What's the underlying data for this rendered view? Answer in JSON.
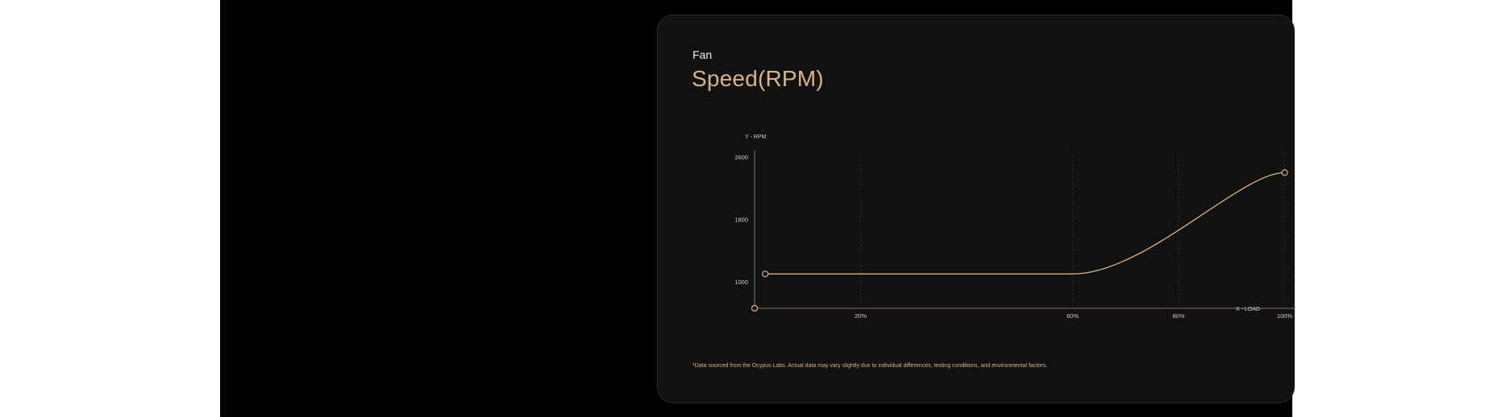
{
  "header": {
    "eyebrow": "Fan",
    "title": "Speed(RPM)"
  },
  "footnote": "*Data sourced from the Ocypus Labs. Actual data may vary slightly due to individual differences, testing conditions, and environmental factors.",
  "colors": {
    "accent": "#d8b48a",
    "axis": "#8a7560",
    "grid": "#2e2e2e",
    "card": "#111111",
    "stage": "#000000",
    "text": "#cfcfcf"
  },
  "chart_data": {
    "type": "line",
    "xlabel": "X - LOAD",
    "ylabel": "Y - RPM",
    "x_ticks": [
      {
        "value": 20,
        "label": "20%"
      },
      {
        "value": 60,
        "label": "60%"
      },
      {
        "value": 80,
        "label": "80%"
      },
      {
        "value": 100,
        "label": "100%"
      }
    ],
    "y_ticks": [
      {
        "value": 1000,
        "label": "1000"
      },
      {
        "value": 1800,
        "label": "1800"
      },
      {
        "value": 2600,
        "label": "2600"
      }
    ],
    "series": [
      {
        "values_x": [
          2,
          60,
          100
        ],
        "values_y": [
          1100,
          1100,
          2400
        ],
        "curve": "smooth"
      }
    ],
    "grid": "vertical-dashed"
  }
}
